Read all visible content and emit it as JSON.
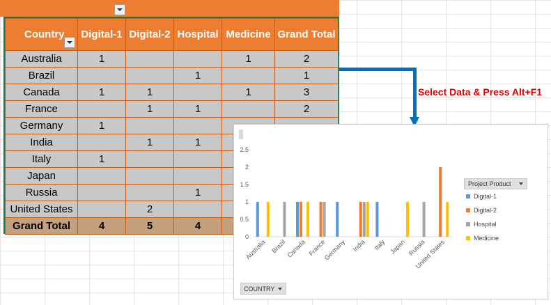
{
  "pivot": {
    "headers": [
      "Country",
      "Digital-1",
      "Digital-2",
      "Hospital",
      "Medicine",
      "Grand Total"
    ],
    "rows": [
      {
        "country": "Australia",
        "cells": [
          "1",
          "",
          "",
          "1",
          "2"
        ]
      },
      {
        "country": "Brazil",
        "cells": [
          "",
          "",
          "1",
          "",
          "1"
        ]
      },
      {
        "country": "Canada",
        "cells": [
          "1",
          "1",
          "",
          "1",
          "3"
        ]
      },
      {
        "country": "France",
        "cells": [
          "",
          "1",
          "1",
          "",
          "2"
        ]
      },
      {
        "country": "Germany",
        "cells": [
          "1",
          "",
          "",
          "",
          ""
        ]
      },
      {
        "country": "India",
        "cells": [
          "",
          "1",
          "1",
          "",
          ""
        ]
      },
      {
        "country": "Italy",
        "cells": [
          "1",
          "",
          "",
          "",
          ""
        ]
      },
      {
        "country": "Japan",
        "cells": [
          "",
          "",
          "",
          "",
          ""
        ]
      },
      {
        "country": "Russia",
        "cells": [
          "",
          "",
          "1",
          "",
          ""
        ]
      },
      {
        "country": "United States",
        "cells": [
          "",
          "2",
          "",
          "",
          ""
        ]
      }
    ],
    "total": {
      "label": "Grand Total",
      "cells": [
        "4",
        "5",
        "4",
        "",
        ""
      ]
    }
  },
  "callout": "Select Data & Press Alt+F1",
  "chart": {
    "axis_field_button": "COUNTRY",
    "legend_title": "Project Product",
    "colors": {
      "Digital-1": "#5b9bd5",
      "Digital-2": "#ed7d31",
      "Hospital": "#a5a5a5",
      "Medicine": "#ffc000"
    },
    "arrow_color": "#0070c0",
    "header_color": "#ed7d31"
  },
  "chart_data": {
    "type": "bar",
    "categories": [
      "Australia",
      "Brazil",
      "Canada",
      "France",
      "Germany",
      "India",
      "Italy",
      "Japan",
      "Russia",
      "United States"
    ],
    "series": [
      {
        "name": "Digital-1",
        "values": [
          1,
          0,
          1,
          0,
          1,
          0,
          1,
          0,
          0,
          0
        ]
      },
      {
        "name": "Digital-2",
        "values": [
          0,
          0,
          1,
          1,
          0,
          1,
          0,
          0,
          0,
          2
        ]
      },
      {
        "name": "Hospital",
        "values": [
          0,
          1,
          0,
          1,
          0,
          1,
          0,
          0,
          1,
          0
        ]
      },
      {
        "name": "Medicine",
        "values": [
          1,
          0,
          1,
          0,
          0,
          1,
          0,
          1,
          0,
          1
        ]
      }
    ],
    "yticks": [
      "0",
      "0.5",
      "1",
      "1.5",
      "2",
      "2.5"
    ],
    "ylim": [
      0,
      2.5
    ],
    "legend_position": "right",
    "grid": false
  }
}
